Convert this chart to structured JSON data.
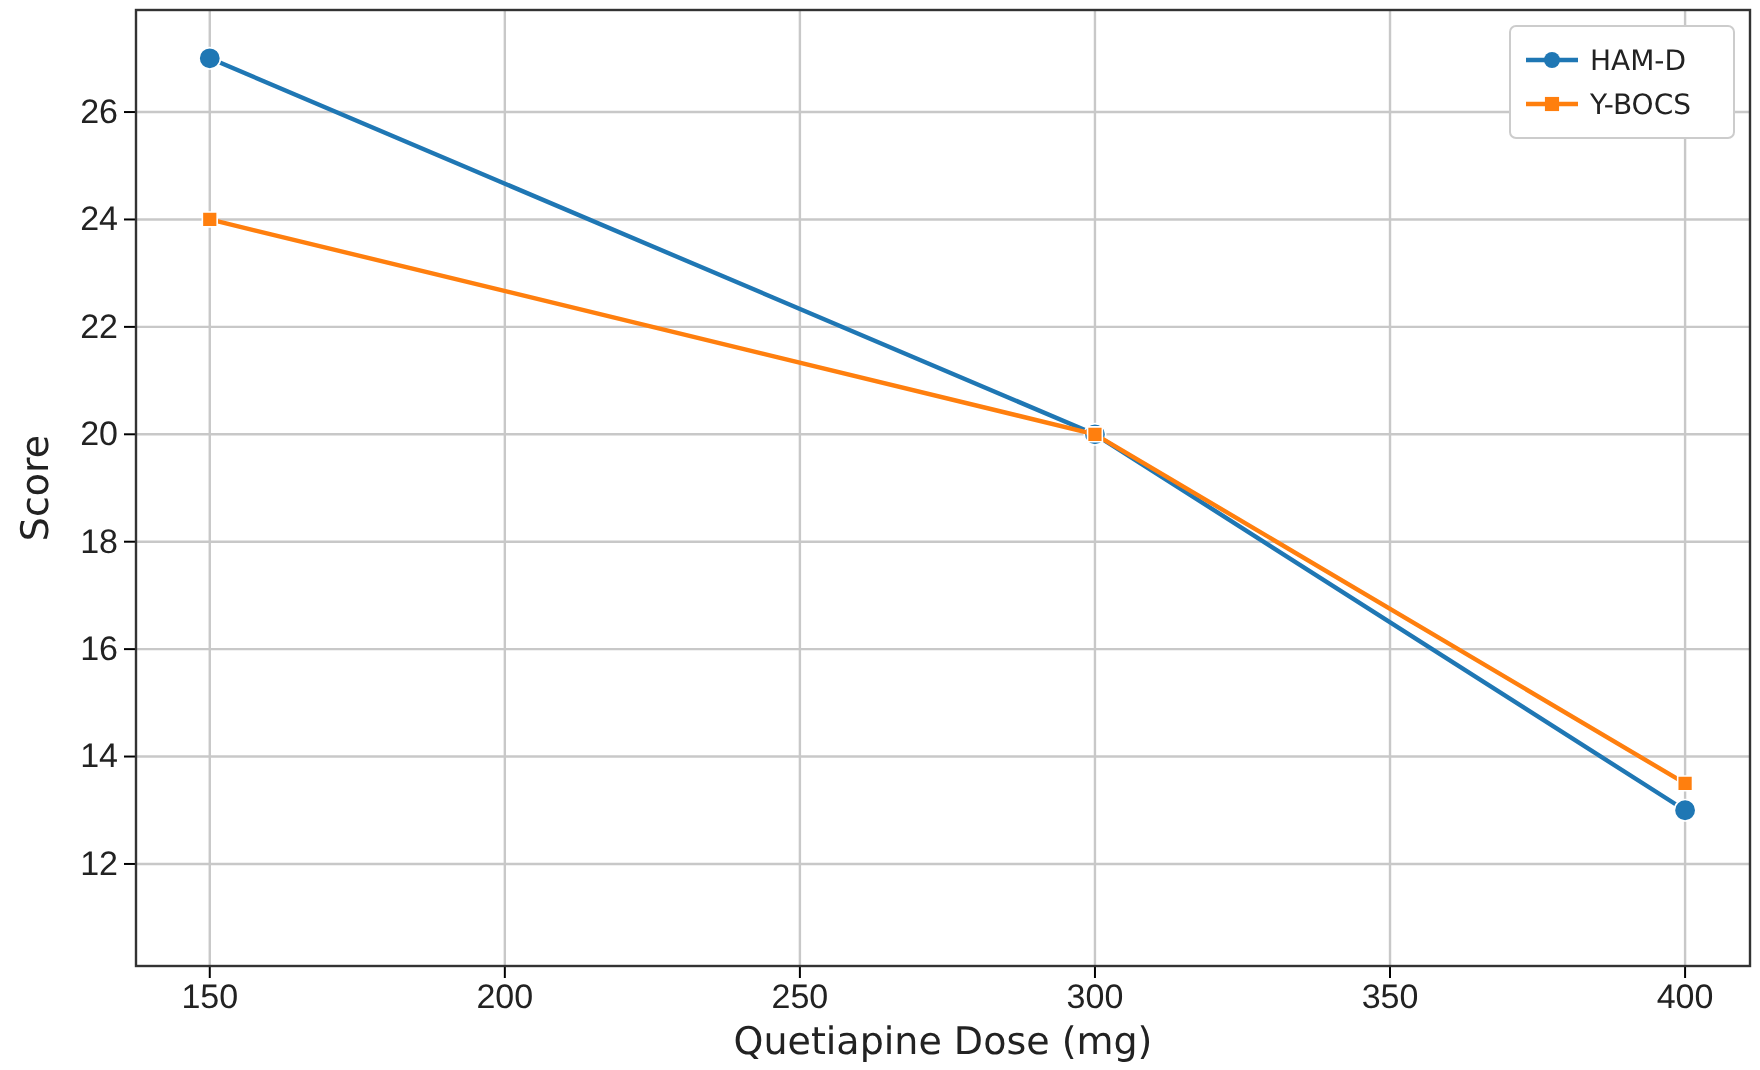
{
  "chart_data": {
    "type": "line",
    "xlabel": "Quetiapine Dose (mg)",
    "ylabel": "Score",
    "x": [
      150,
      300,
      400
    ],
    "series": [
      {
        "name": "HAM-D",
        "color": "#1f77b4",
        "values": [
          27,
          20,
          13
        ],
        "marker": "circle"
      },
      {
        "name": "Y-BOCS",
        "color": "#ff7f0e",
        "values": [
          24,
          20,
          13.5
        ],
        "marker": "square"
      }
    ],
    "xlim": [
      137.5,
      411
    ],
    "ylim": [
      10.1,
      27.9
    ],
    "xticks": [
      150,
      200,
      250,
      300,
      350,
      400
    ],
    "yticks": [
      12,
      14,
      16,
      18,
      20,
      22,
      24,
      26
    ],
    "grid": true,
    "legend": "top right",
    "line_style": "solid"
  }
}
